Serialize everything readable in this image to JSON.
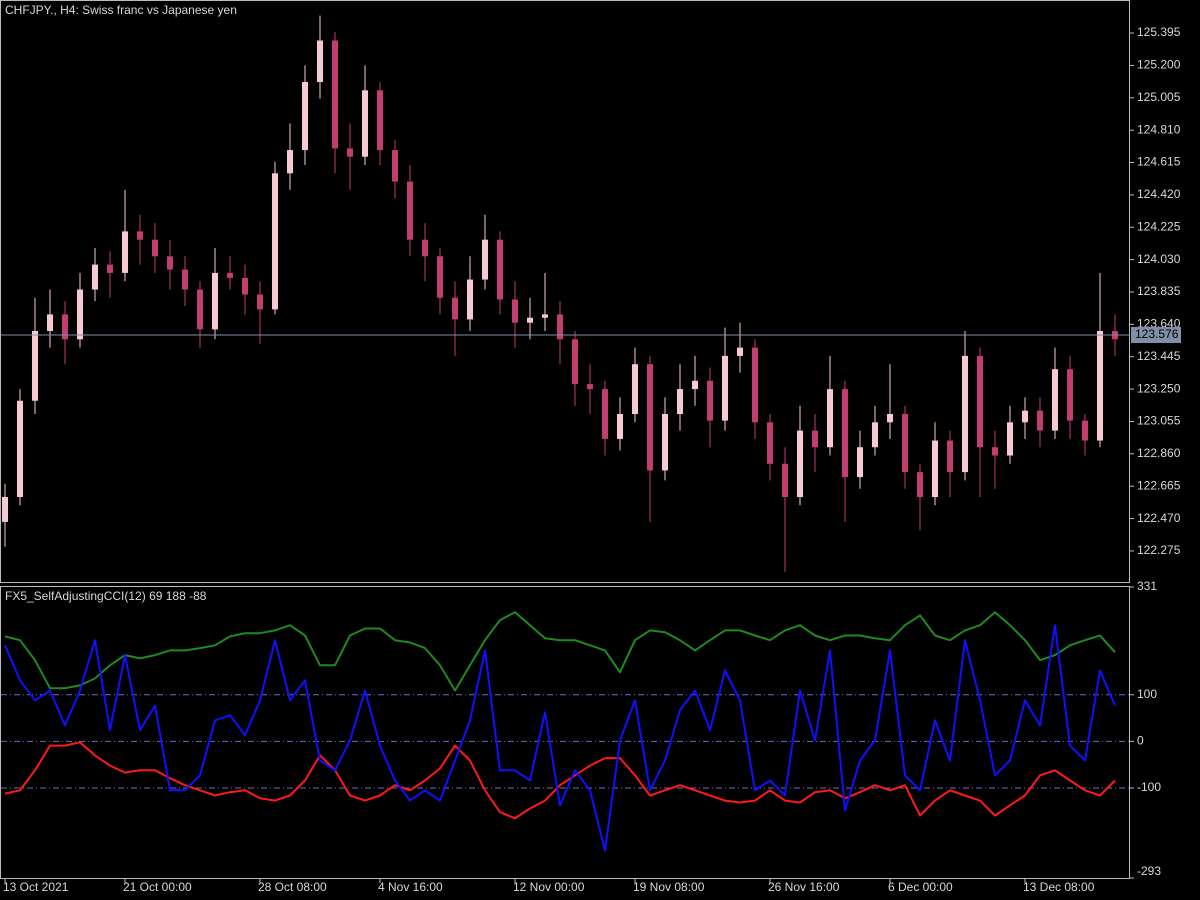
{
  "chart_data": [
    {
      "type": "candlestick",
      "title": "CHFJPY., H4:  Swiss franc vs Japanese yen",
      "categories": [
        "13 Oct 2021",
        null,
        null,
        null,
        null,
        null,
        null,
        null,
        "21 Oct 00:00",
        null,
        null,
        null,
        null,
        null,
        null,
        null,
        null,
        "28 Oct 08:00",
        null,
        null,
        null,
        null,
        null,
        null,
        null,
        "4 Nov 16:00",
        null,
        null,
        null,
        null,
        null,
        null,
        null,
        null,
        "12 Nov 00:00",
        null,
        null,
        null,
        null,
        null,
        null,
        null,
        "19 Nov 08:00",
        null,
        null,
        null,
        null,
        null,
        null,
        null,
        null,
        "26 Nov 16:00",
        null,
        null,
        null,
        null,
        null,
        null,
        null,
        "6 Dec 00:00",
        null,
        null,
        null,
        null,
        null,
        null,
        null,
        null,
        "13 Dec 08:00",
        null,
        null,
        null,
        null,
        null,
        null
      ],
      "open": [
        122.45,
        122.6,
        123.18,
        123.6,
        123.7,
        123.55,
        123.85,
        124.0,
        123.95,
        124.2,
        124.15,
        124.05,
        123.97,
        123.85,
        123.61,
        123.95,
        123.92,
        123.82,
        123.73,
        124.55,
        124.69,
        125.1,
        125.35,
        124.7,
        124.65,
        125.05,
        124.69,
        124.5,
        124.15,
        124.05,
        123.8,
        123.67,
        123.91,
        124.15,
        123.79,
        123.65,
        123.68,
        123.7,
        123.55,
        123.28,
        123.25,
        122.95,
        123.1,
        123.4,
        122.76,
        123.1,
        123.25,
        123.3,
        123.06,
        123.45,
        123.5,
        123.05,
        122.8,
        122.6,
        123.0,
        122.9,
        123.25,
        122.72,
        122.9,
        123.05,
        123.1,
        122.75,
        122.6,
        122.94,
        122.75,
        123.45,
        122.9,
        122.85,
        123.05,
        123.12,
        123.0,
        123.37,
        123.06,
        122.94,
        123.6
      ],
      "high": [
        122.68,
        123.25,
        123.8,
        123.85,
        123.78,
        123.95,
        124.1,
        124.08,
        124.45,
        124.3,
        124.25,
        124.15,
        124.05,
        123.9,
        124.1,
        124.05,
        124.0,
        123.9,
        124.62,
        124.85,
        125.2,
        125.5,
        125.4,
        124.85,
        125.2,
        125.1,
        124.75,
        124.6,
        124.25,
        124.1,
        123.9,
        124.05,
        124.3,
        124.2,
        123.9,
        123.8,
        123.95,
        123.78,
        123.6,
        123.4,
        123.3,
        123.2,
        123.5,
        123.45,
        123.2,
        123.4,
        123.45,
        123.38,
        123.62,
        123.65,
        123.55,
        123.1,
        122.9,
        123.15,
        123.1,
        123.45,
        123.3,
        123.0,
        123.15,
        123.4,
        123.15,
        122.8,
        123.05,
        123.0,
        123.6,
        123.5,
        123.0,
        123.15,
        123.2,
        123.2,
        123.5,
        123.45,
        123.1,
        123.95,
        123.7
      ],
      "low": [
        122.3,
        122.55,
        123.1,
        123.5,
        123.4,
        123.5,
        123.78,
        123.8,
        123.9,
        124.0,
        123.95,
        123.85,
        123.75,
        123.5,
        123.55,
        123.85,
        123.7,
        123.52,
        123.7,
        124.45,
        124.6,
        125.0,
        124.55,
        124.45,
        124.6,
        124.6,
        124.4,
        124.05,
        123.9,
        123.7,
        123.45,
        123.6,
        123.85,
        123.7,
        123.5,
        123.55,
        123.6,
        123.4,
        123.15,
        123.1,
        122.85,
        122.88,
        123.05,
        122.45,
        122.7,
        123.0,
        123.15,
        122.9,
        123.0,
        123.35,
        122.95,
        122.7,
        122.15,
        122.55,
        122.75,
        122.85,
        122.45,
        122.65,
        122.85,
        122.95,
        122.65,
        122.4,
        122.55,
        122.6,
        122.7,
        122.6,
        122.65,
        122.8,
        122.95,
        122.9,
        122.95,
        122.95,
        122.85,
        122.9,
        123.45
      ],
      "close": [
        122.6,
        123.18,
        123.6,
        123.7,
        123.55,
        123.85,
        124.0,
        123.95,
        124.2,
        124.15,
        124.05,
        123.97,
        123.85,
        123.61,
        123.95,
        123.92,
        123.82,
        123.73,
        124.55,
        124.69,
        125.1,
        125.35,
        124.7,
        124.65,
        125.05,
        124.69,
        124.5,
        124.15,
        124.05,
        123.8,
        123.67,
        123.91,
        124.15,
        123.79,
        123.65,
        123.68,
        123.7,
        123.55,
        123.28,
        123.25,
        122.95,
        123.1,
        123.4,
        122.76,
        123.1,
        123.25,
        123.3,
        123.06,
        123.45,
        123.5,
        123.05,
        122.8,
        122.6,
        123.0,
        122.9,
        123.25,
        122.72,
        122.9,
        123.05,
        123.1,
        122.75,
        122.6,
        122.94,
        122.75,
        123.45,
        122.9,
        122.85,
        123.05,
        123.12,
        123.0,
        123.37,
        123.06,
        122.94,
        123.6,
        123.55
      ],
      "up_color": "#f7c9d2",
      "down_color": "#c23d70",
      "last_price": 123.576,
      "last_price_color": "#8090a8",
      "ylim": [
        122.088,
        125.594
      ],
      "yticks": [
        125.395,
        {
          "value": 125.2,
          "label": "125.200"
        },
        125.005,
        {
          "value": 124.81,
          "label": "124.810"
        },
        124.615,
        {
          "value": 124.42,
          "label": "124.420"
        },
        124.225,
        {
          "value": 124.03,
          "label": "124.030"
        },
        123.835,
        {
          "value": 123.64,
          "label": "123.640"
        },
        123.445,
        {
          "value": 123.25,
          "label": "123.250"
        },
        123.055,
        {
          "value": 122.86,
          "label": "122.860"
        },
        122.665,
        {
          "value": 122.47,
          "label": "122.470"
        },
        122.275
      ]
    },
    {
      "type": "line",
      "title": "FX5_SelfAdjustingCCI(12) 69 188 -88",
      "series": [
        {
          "color": "#1f8a1f",
          "values": [
            225,
            217,
            174,
            114,
            114,
            120,
            135,
            163,
            185,
            178,
            185,
            195,
            195,
            200,
            206,
            225,
            232,
            232,
            238,
            249,
            227,
            163,
            163,
            227,
            242,
            242,
            217,
            212,
            200,
            163,
            109,
            163,
            217,
            260,
            277,
            249,
            221,
            217,
            217,
            206,
            195,
            148,
            217,
            238,
            234,
            217,
            195,
            217,
            238,
            238,
            227,
            217,
            238,
            249,
            227,
            217,
            227,
            227,
            221,
            217,
            249,
            270,
            227,
            217,
            238,
            249,
            277,
            249,
            217,
            174,
            185,
            206,
            217,
            227,
            191
          ]
        },
        {
          "color": "#ff1a1a",
          "values": [
            -112,
            -105,
            -62,
            -9,
            -9,
            -2,
            -30,
            -52,
            -67,
            -62,
            -62,
            -79,
            -94,
            -105,
            -116,
            -109,
            -105,
            -122,
            -127,
            -116,
            -84,
            -30,
            -62,
            -116,
            -127,
            -116,
            -94,
            -105,
            -84,
            -58,
            -9,
            -41,
            -105,
            -152,
            -165,
            -144,
            -127,
            -94,
            -73,
            -52,
            -36,
            -36,
            -73,
            -116,
            -105,
            -94,
            -105,
            -116,
            -127,
            -131,
            -127,
            -105,
            -127,
            -131,
            -109,
            -105,
            -122,
            -109,
            -94,
            -105,
            -94,
            -159,
            -127,
            -105,
            -116,
            -127,
            -159,
            -137,
            -116,
            -73,
            -62,
            -84,
            -105,
            -116,
            -84
          ]
        },
        {
          "color": "#1010ff",
          "values": [
            206,
            131,
            88,
            109,
            34,
            109,
            217,
            24,
            185,
            24,
            77,
            -105,
            -105,
            -73,
            45,
            56,
            13,
            88,
            217,
            88,
            131,
            -41,
            -62,
            2,
            109,
            -9,
            -84,
            -127,
            -105,
            -127,
            -41,
            45,
            195,
            -62,
            -62,
            -84,
            62,
            -137,
            -62,
            -105,
            -234,
            2,
            88,
            -105,
            -41,
            67,
            109,
            24,
            152,
            88,
            -105,
            -84,
            -116,
            109,
            2,
            195,
            -148,
            -41,
            2,
            195,
            -73,
            -105,
            45,
            -41,
            217,
            88,
            -73,
            -41,
            88,
            34,
            249,
            -9,
            -41,
            152,
            77
          ]
        }
      ],
      "levels": [
        100,
        0,
        -100
      ],
      "level_color": "#6a6acd",
      "ylim": [
        -293,
        331
      ],
      "yticks": [
        331,
        100,
        0,
        -100,
        -293
      ]
    }
  ]
}
